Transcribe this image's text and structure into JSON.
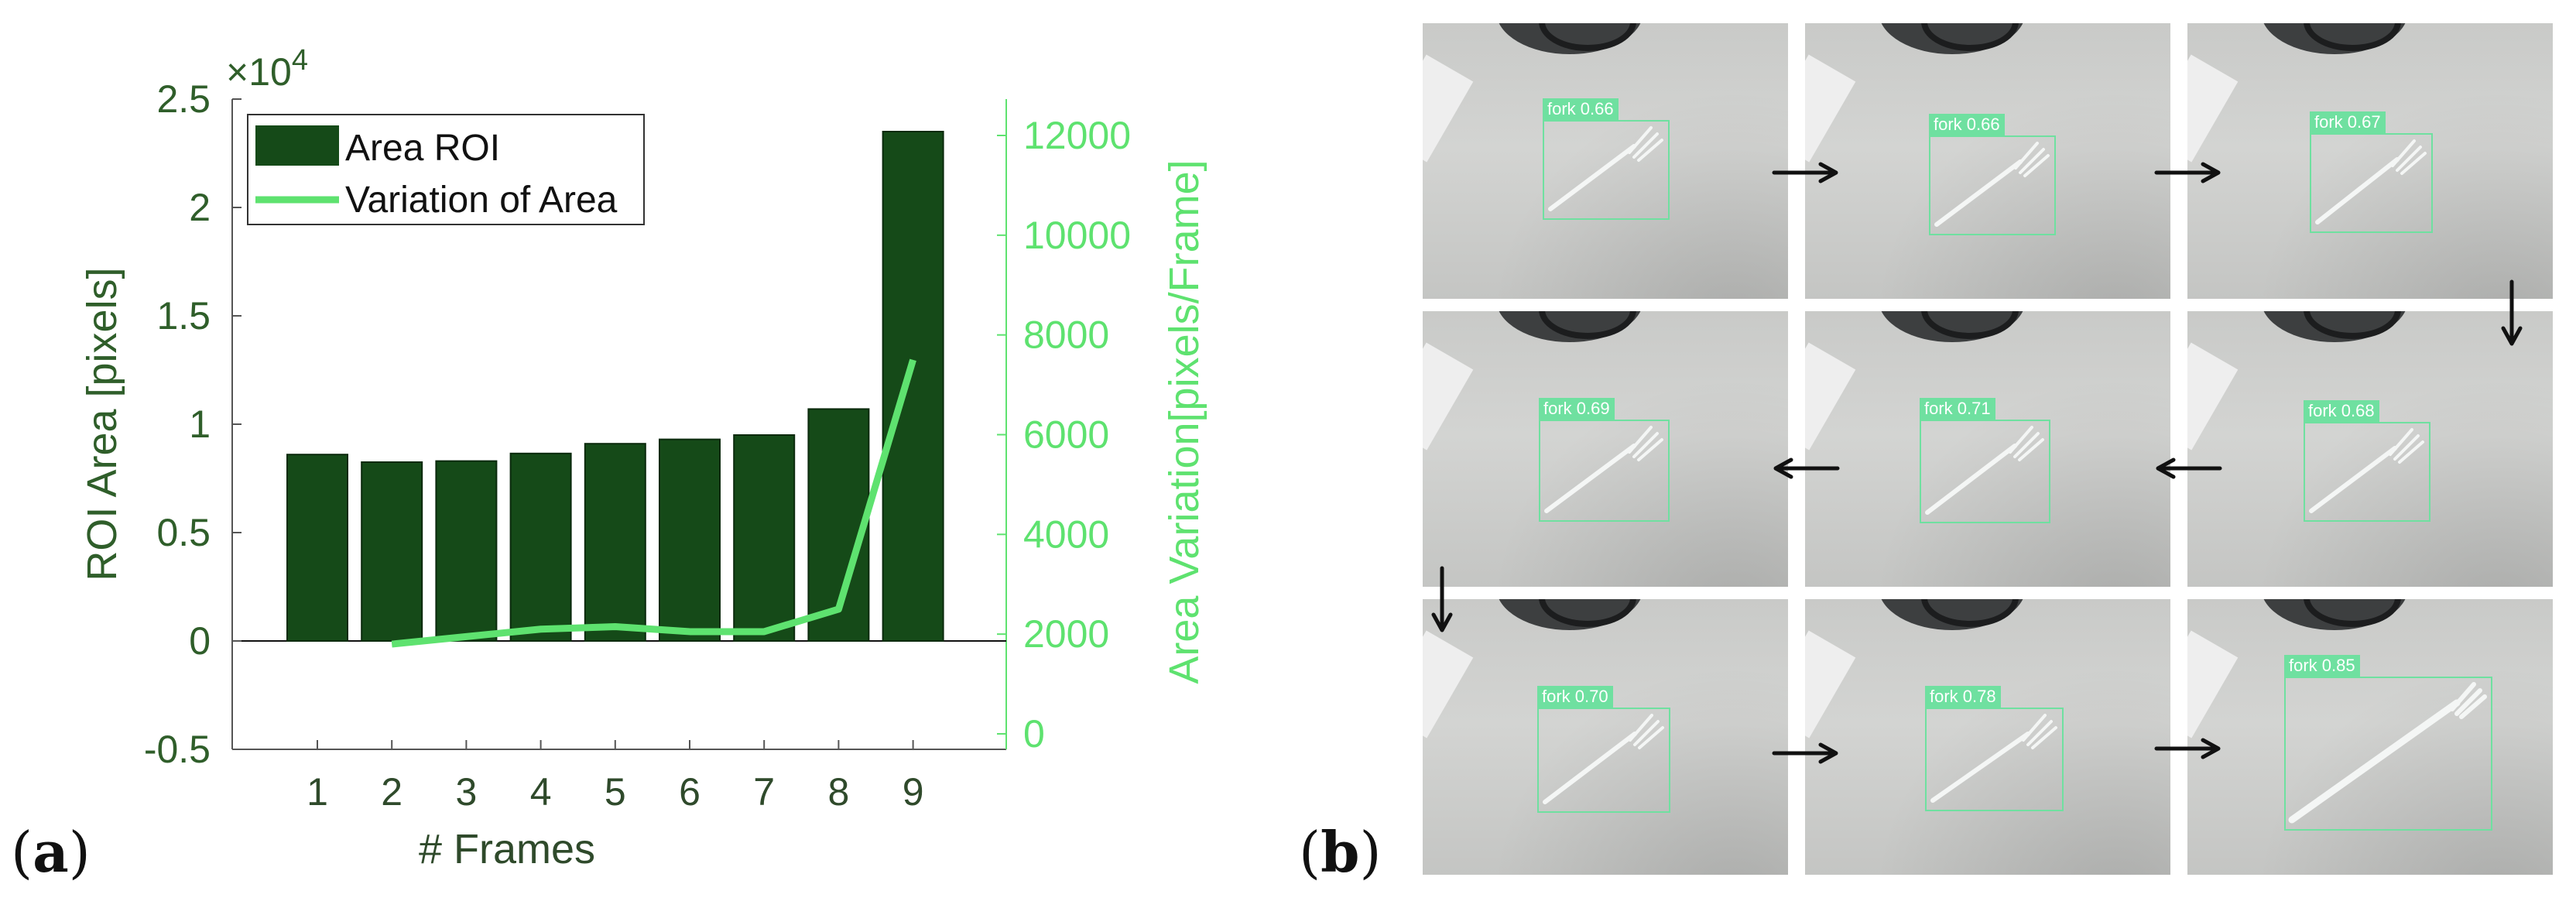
{
  "panel_labels": {
    "a": "a",
    "b": "b"
  },
  "chart_data": {
    "type": "bar+line",
    "categories": [
      "1",
      "2",
      "3",
      "4",
      "5",
      "6",
      "7",
      "8",
      "9"
    ],
    "series": [
      {
        "name": "Area ROI",
        "type": "bar",
        "axis": "left",
        "values": [
          8600,
          8250,
          8300,
          8650,
          9100,
          9300,
          9500,
          10700,
          23500
        ]
      },
      {
        "name": "Variation of Area",
        "type": "line",
        "axis": "right",
        "x": [
          "2",
          "3",
          "4",
          "5",
          "6",
          "7",
          "8",
          "9"
        ],
        "values": [
          1800,
          1950,
          2100,
          2150,
          2050,
          2050,
          2500,
          7500
        ]
      }
    ],
    "xlabel": "# Frames",
    "ylabel_left": "ROI Area [pixels]",
    "ylabel_right": "Area Variation[pixels/Frame]",
    "ylim_left": [
      -0.5,
      2.5
    ],
    "yticks_left": [
      "-0.5",
      "0",
      "0.5",
      "1",
      "1.5",
      "2",
      "2.5"
    ],
    "left_axis_multiplier": "×10",
    "left_axis_multiplier_exp": "4",
    "ylim_right": [
      0,
      12000
    ],
    "yticks_right": [
      "0",
      "2000",
      "4000",
      "6000",
      "8000",
      "10000",
      "12000"
    ],
    "legend": {
      "position": "top-left",
      "entries": [
        "Area ROI",
        "Variation of Area"
      ]
    },
    "grid": false,
    "colors": {
      "bar": "#154a18",
      "line": "#5ee26f",
      "left_axis": "#2f5e2a",
      "right_axis": "#5ee26f"
    }
  },
  "detections": [
    {
      "label": "fork 0.66"
    },
    {
      "label": "fork 0.66"
    },
    {
      "label": "fork 0.67"
    },
    {
      "label": "fork 0.69"
    },
    {
      "label": "fork 0.71"
    },
    {
      "label": "fork 0.68"
    },
    {
      "label": "fork 0.70"
    },
    {
      "label": "fork 0.78"
    },
    {
      "label": "fork 0.85"
    }
  ],
  "detection_color": "#6fe0a0"
}
